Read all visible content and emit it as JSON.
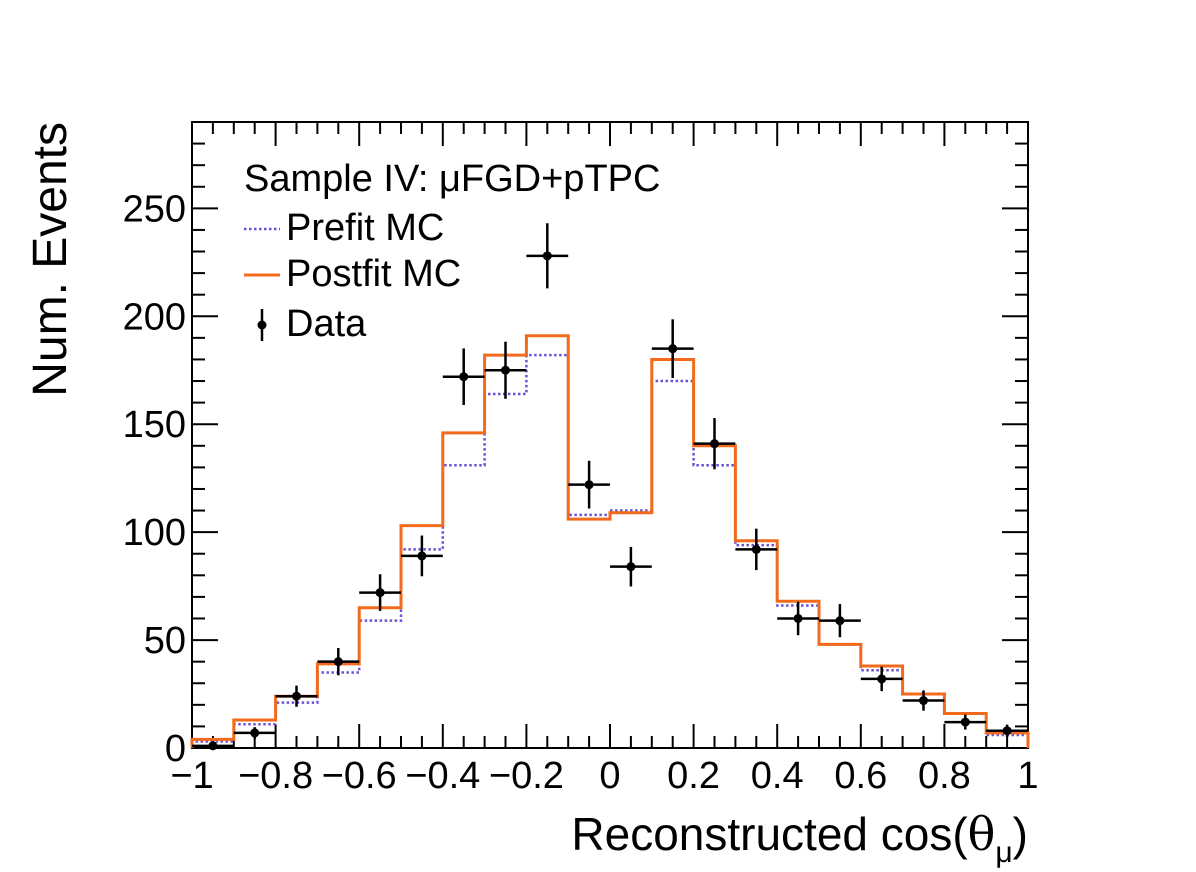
{
  "chart_data": {
    "type": "histogram",
    "xlabel": "Reconstructed cos(θμ)",
    "xlabel_main": "Reconstructed cos(",
    "xlabel_theta": "θ",
    "xlabel_sub": "μ",
    "xlabel_close": ")",
    "ylabel": "Num. Events",
    "xlim": [
      -1,
      1
    ],
    "ylim": [
      0,
      290
    ],
    "x_ticks": [
      -1,
      -0.8,
      -0.6,
      -0.4,
      -0.2,
      0,
      0.2,
      0.4,
      0.6,
      0.8,
      1
    ],
    "x_tick_labels": [
      "−1",
      "−0.8",
      "−0.6",
      "−0.4",
      "−0.2",
      "0",
      "0.2",
      "0.4",
      "0.6",
      "0.8",
      "1"
    ],
    "y_ticks": [
      0,
      50,
      100,
      150,
      200,
      250
    ],
    "y_tick_labels": [
      "0",
      "50",
      "100",
      "150",
      "200",
      "250"
    ],
    "bin_edges": [
      -1,
      -0.9,
      -0.8,
      -0.7,
      -0.6,
      -0.5,
      -0.4,
      -0.3,
      -0.2,
      -0.1,
      0,
      0.1,
      0.2,
      0.3,
      0.4,
      0.5,
      0.6,
      0.7,
      0.8,
      0.9,
      1
    ],
    "series": [
      {
        "name": "Prefit MC",
        "style": "dotted",
        "color": "#6b52d6",
        "values": [
          3,
          11,
          21,
          35,
          59,
          92,
          131,
          164,
          182,
          108,
          110,
          170,
          131,
          94,
          66,
          48,
          36,
          25,
          16,
          6
        ]
      },
      {
        "name": "Postfit MC",
        "style": "solid",
        "color": "#f26a1b",
        "values": [
          4,
          13,
          24,
          39,
          65,
          103,
          146,
          182,
          191,
          106,
          109,
          180,
          140,
          96,
          68,
          48,
          38,
          25,
          16,
          7
        ]
      },
      {
        "name": "Data",
        "style": "markers",
        "color": "#000000",
        "values": [
          1,
          7,
          24,
          40,
          72,
          89,
          172,
          175,
          228,
          122,
          84,
          185,
          141,
          92,
          60,
          59,
          32,
          22,
          12,
          8
        ]
      }
    ],
    "legend": {
      "title": "Sample IV: μFGD+pTPC",
      "placement": "top-left",
      "entries": [
        "Prefit MC",
        "Postfit MC",
        "Data"
      ]
    }
  }
}
